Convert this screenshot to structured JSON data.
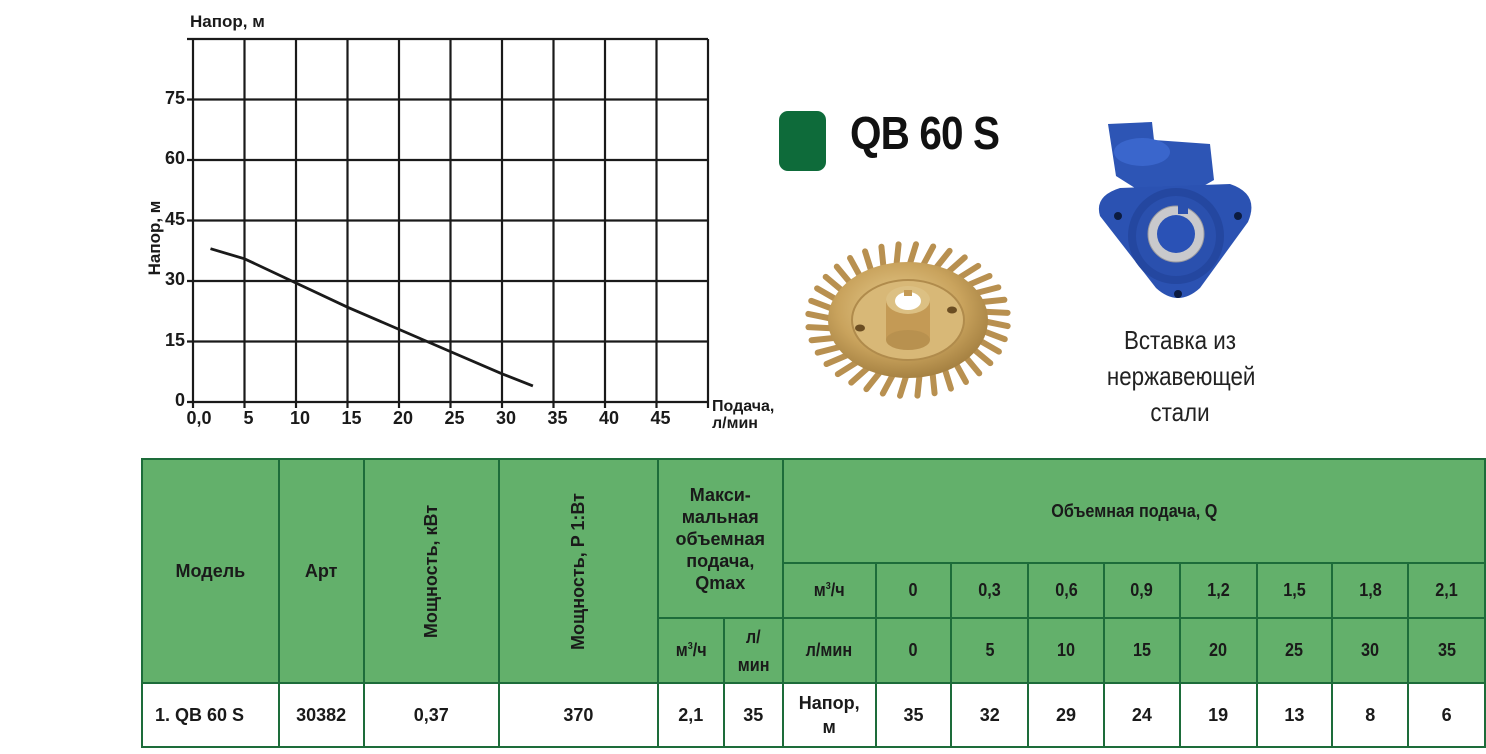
{
  "chart_data": {
    "type": "line",
    "title": "",
    "ylabel": "Напор, м",
    "ylabel_top": "Напор, м",
    "xlabel_line1": "Подача,",
    "xlabel_line2": "л/мин",
    "xlim": [
      0,
      50
    ],
    "ylim": [
      0,
      90
    ],
    "grid": true,
    "x_ticks": [
      "0,0",
      "5",
      "10",
      "15",
      "20",
      "25",
      "30",
      "35",
      "40",
      "45"
    ],
    "y_ticks": [
      "0",
      "15",
      "30",
      "45",
      "60",
      "75"
    ],
    "series": [
      {
        "name": "QB 60 S",
        "x": [
          1.7,
          5,
          10,
          15,
          20,
          25,
          30,
          33
        ],
        "y": [
          38,
          35.5,
          29.5,
          23.5,
          18,
          12.5,
          7,
          4
        ]
      }
    ]
  },
  "product": {
    "title": "QB 60 S",
    "badge_color": "#0e6b3a",
    "caption_line1": "Вставка из",
    "caption_line2": "нержавеющей",
    "caption_line3": "стали"
  },
  "table": {
    "header": {
      "model": "Модель",
      "art": "Арт",
      "power_kw": "Мощность, кВт",
      "power_w": "Мощность, P 1:Вт",
      "qmax_l1": "Макси-",
      "qmax_l2": "мальная",
      "qmax_l3": "объемная",
      "qmax_l4": "подача,",
      "qmax_l5": "Qmax",
      "qmax_unit_m3": "м",
      "qmax_unit_m3_sup": "3",
      "qmax_unit_m3_tail": "/ч",
      "qmax_unit_lmin_l1": "л/",
      "qmax_unit_lmin_l2": "мин",
      "flow_title": "Объемная подача, Q",
      "flow_unit_m3": "м",
      "flow_unit_m3_sup": "3",
      "flow_unit_m3_tail": "/ч",
      "flow_unit_lmin": "л/мин"
    },
    "flow_m3h": [
      "0",
      "0,3",
      "0,6",
      "0,9",
      "1,2",
      "1,5",
      "1,8",
      "2,1"
    ],
    "flow_lmin": [
      "0",
      "5",
      "10",
      "15",
      "20",
      "25",
      "30",
      "35"
    ],
    "rows": [
      {
        "model": "1. QB 60 S",
        "art": "30382",
        "power_kw": "0,37",
        "power_w": "370",
        "qmax_m3h": "2,1",
        "qmax_lmin": "35",
        "head_label_l1": "Напор,",
        "head_label_l2": "м",
        "head": [
          "35",
          "32",
          "29",
          "24",
          "19",
          "13",
          "8",
          "6"
        ]
      }
    ]
  },
  "colors": {
    "table_header_bg": "#63b06b",
    "table_border": "#1d6c3a",
    "badge": "#0e6b3a",
    "housing_blue": "#2f56b8",
    "impeller_gold": "#c9a35d"
  }
}
